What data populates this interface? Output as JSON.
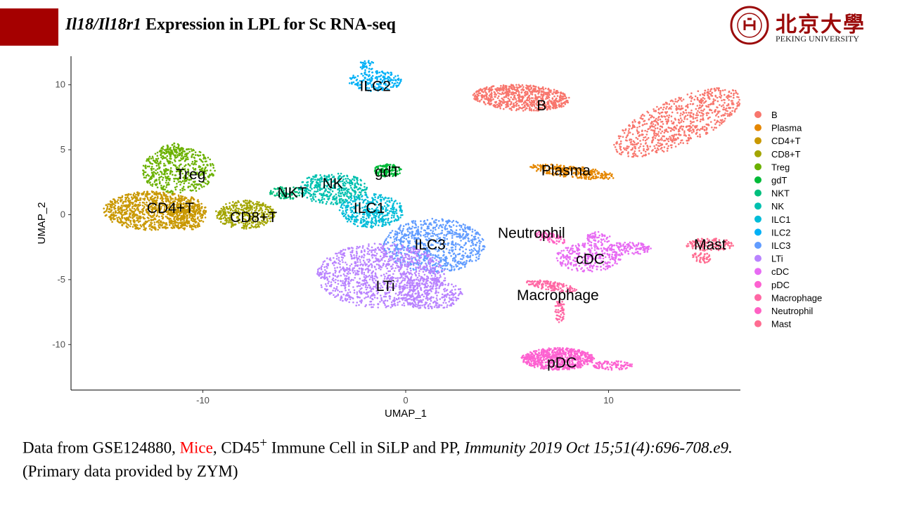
{
  "slide": {
    "title_gene1": "Il18",
    "title_slash": "/",
    "title_gene2": "Il18r1",
    "title_rest": " Expression in LPL for Sc RNA-seq"
  },
  "logo": {
    "chinese": "北京大學",
    "english": "PEKING UNIVERSITY",
    "accent_color": "#9b0a0a"
  },
  "footer": {
    "prefix": "Data from GSE124880, ",
    "species": "Mice",
    "mid1": ", CD45",
    "superscript": "+",
    "mid2": " Immune Cell in SiLP and PP, ",
    "citation": "Immunity 2019 Oct 15;51(4):696-708.e9.",
    "line2": "(Primary data provided by ZYM)"
  },
  "chart_data": {
    "type": "scatter",
    "xlabel": "UMAP_1",
    "ylabel": "UMAP_2",
    "xlim": [
      -16.5,
      16.5
    ],
    "ylim": [
      -13.5,
      12.2
    ],
    "xticks": [
      -10,
      0,
      10
    ],
    "yticks": [
      -10,
      -5,
      0,
      5,
      10
    ],
    "grid": false,
    "legend_position": "right",
    "clusters": [
      {
        "name": "B",
        "color": "#F8766D",
        "label_x": 6.7,
        "label_y": 8.4
      },
      {
        "name": "Plasma",
        "color": "#E58700",
        "label_x": 7.9,
        "label_y": 3.4
      },
      {
        "name": "CD4+T",
        "color": "#C99800",
        "label_x": -11.6,
        "label_y": 0.5
      },
      {
        "name": "CD8+T",
        "color": "#A3A500",
        "label_x": -7.5,
        "label_y": -0.2
      },
      {
        "name": "Treg",
        "color": "#6BB100",
        "label_x": -10.6,
        "label_y": 3.1
      },
      {
        "name": "gdT",
        "color": "#00BA38",
        "label_x": -0.9,
        "label_y": 3.3
      },
      {
        "name": "NKT",
        "color": "#00BF7D",
        "label_x": -5.6,
        "label_y": 1.7
      },
      {
        "name": "NK",
        "color": "#00C0AF",
        "label_x": -3.6,
        "label_y": 2.4
      },
      {
        "name": "ILC1",
        "color": "#00BCD8",
        "label_x": -1.8,
        "label_y": 0.5
      },
      {
        "name": "ILC2",
        "color": "#00B0F6",
        "label_x": -1.5,
        "label_y": 9.9
      },
      {
        "name": "ILC3",
        "color": "#619CFF",
        "label_x": 1.2,
        "label_y": -2.3
      },
      {
        "name": "LTi",
        "color": "#B983FF",
        "label_x": -1.0,
        "label_y": -5.5
      },
      {
        "name": "cDC",
        "color": "#E76BF3",
        "label_x": 9.1,
        "label_y": -3.4
      },
      {
        "name": "pDC",
        "color": "#FD61D1",
        "label_x": 7.7,
        "label_y": -11.4
      },
      {
        "name": "Macrophage",
        "color": "#FF67A4",
        "label_x": 7.5,
        "label_y": -6.2
      },
      {
        "name": "Neutrophil",
        "color": "#FF61C3",
        "label_x": 6.2,
        "label_y": -1.4
      },
      {
        "name": "Mast",
        "color": "#FF6C91",
        "label_x": 15.0,
        "label_y": -2.3
      }
    ]
  }
}
